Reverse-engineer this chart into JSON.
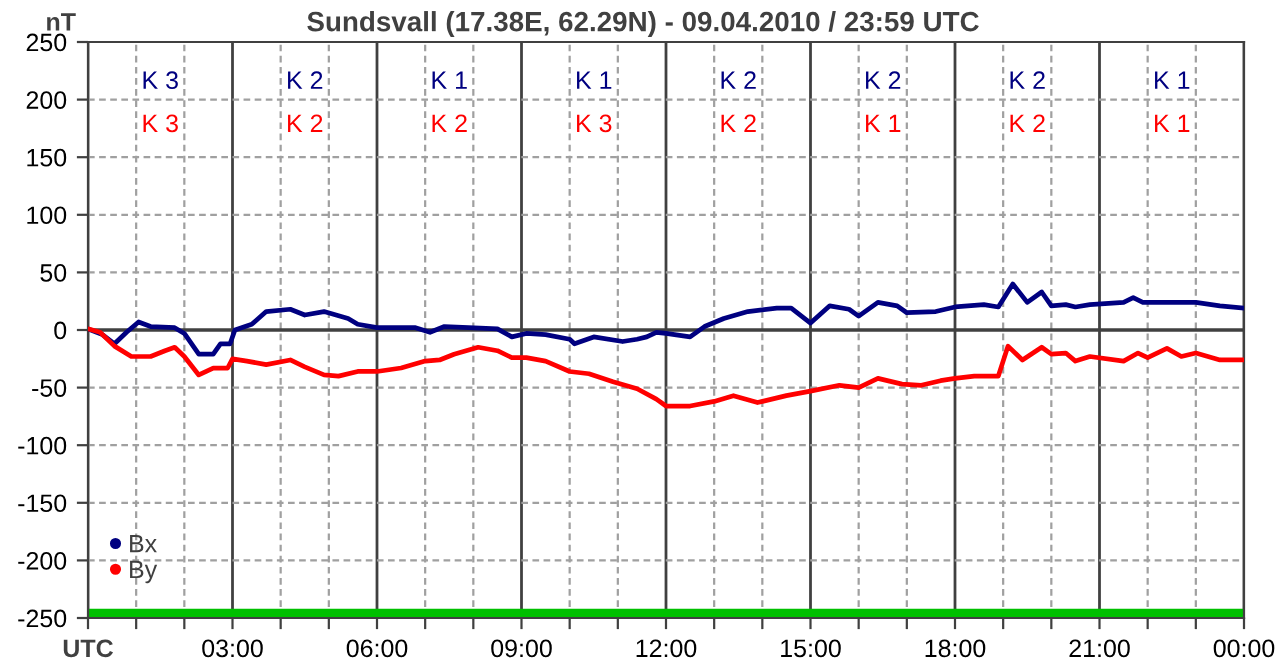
{
  "chart_data": {
    "type": "line",
    "title": "Sundsvall (17.38E, 62.29N) - 09.04.2010 / 23:59 UTC",
    "ylabel": "nT",
    "xlim": [
      0,
      24
    ],
    "ylim": [
      -250,
      250
    ],
    "xticks": [
      {
        "value": 0,
        "label": "UTC"
      },
      {
        "value": 1,
        "label": null
      },
      {
        "value": 2,
        "label": null
      },
      {
        "value": 3,
        "label": "03:00"
      },
      {
        "value": 4,
        "label": null
      },
      {
        "value": 5,
        "label": null
      },
      {
        "value": 6,
        "label": "06:00"
      },
      {
        "value": 7,
        "label": null
      },
      {
        "value": 8,
        "label": null
      },
      {
        "value": 9,
        "label": "09:00"
      },
      {
        "value": 10,
        "label": null
      },
      {
        "value": 11,
        "label": null
      },
      {
        "value": 12,
        "label": "12:00"
      },
      {
        "value": 13,
        "label": null
      },
      {
        "value": 14,
        "label": null
      },
      {
        "value": 15,
        "label": "15:00"
      },
      {
        "value": 16,
        "label": null
      },
      {
        "value": 17,
        "label": null
      },
      {
        "value": 18,
        "label": "18:00"
      },
      {
        "value": 19,
        "label": null
      },
      {
        "value": 20,
        "label": null
      },
      {
        "value": 21,
        "label": "21:00"
      },
      {
        "value": 22,
        "label": null
      },
      {
        "value": 23,
        "label": null
      },
      {
        "value": 24,
        "label": "00:00"
      }
    ],
    "yticks": [
      -250,
      -200,
      -150,
      -100,
      -50,
      0,
      50,
      100,
      150,
      200,
      250
    ],
    "grid": true,
    "legend": "bottom left",
    "marker": "none",
    "line_style": "solid",
    "ref_lines": [
      {
        "axis": "y",
        "value": 0,
        "color": "#404040"
      }
    ],
    "bands": [
      {
        "axis": "y",
        "from": -250,
        "to": -242,
        "color": "#00c000"
      }
    ],
    "series": [
      {
        "name": "Bx",
        "color": "#000080",
        "x": [
          0,
          0.3,
          0.55,
          0.8,
          1.05,
          1.3,
          1.8,
          2.0,
          2.3,
          2.6,
          2.75,
          2.95,
          3.05,
          3.4,
          3.7,
          4.2,
          4.5,
          4.9,
          5.4,
          5.6,
          6.0,
          6.8,
          7.1,
          7.4,
          7.9,
          8.5,
          8.8,
          9.1,
          9.5,
          10.0,
          10.1,
          10.5,
          11.1,
          11.4,
          11.6,
          11.8,
          12.0,
          12.5,
          12.8,
          13.2,
          13.7,
          14.3,
          14.6,
          15.0,
          15.4,
          15.8,
          16.0,
          16.4,
          16.8,
          17.0,
          17.6,
          18.0,
          18.6,
          18.9,
          19.2,
          19.5,
          19.8,
          20.0,
          20.3,
          20.5,
          20.8,
          21.5,
          21.7,
          21.9,
          22.5,
          23.0,
          23.5,
          24.0
        ],
        "values": [
          1,
          -4,
          -12,
          -2,
          7,
          3,
          2,
          -3,
          -21,
          -21,
          -12,
          -12,
          0,
          5,
          16,
          18,
          13,
          16,
          10,
          5,
          2,
          2,
          -2,
          3,
          2,
          1,
          -6,
          -3,
          -4,
          -8,
          -12,
          -6,
          -10,
          -8,
          -6,
          -2,
          -3,
          -6,
          3,
          10,
          16,
          19,
          19,
          6,
          21,
          18,
          12,
          24,
          21,
          15,
          16,
          20,
          22,
          20,
          40,
          24,
          33,
          21,
          22,
          20,
          22,
          24,
          28,
          24,
          24,
          24,
          21,
          19
        ]
      },
      {
        "name": "By",
        "color": "#ff0000",
        "x": [
          0,
          0.25,
          0.55,
          0.9,
          1.3,
          1.6,
          1.8,
          2.0,
          2.3,
          2.6,
          2.9,
          3.0,
          3.3,
          3.7,
          4.2,
          4.5,
          4.9,
          5.2,
          5.6,
          6.0,
          6.5,
          7.0,
          7.3,
          7.6,
          8.1,
          8.5,
          8.8,
          9.1,
          9.5,
          10.0,
          10.4,
          10.9,
          11.4,
          11.8,
          12.0,
          12.5,
          13.0,
          13.4,
          13.9,
          14.5,
          15.0,
          15.6,
          16.0,
          16.4,
          16.9,
          17.3,
          17.7,
          18.0,
          18.4,
          18.9,
          19.1,
          19.4,
          19.8,
          20.0,
          20.3,
          20.5,
          20.8,
          21.5,
          21.8,
          22.0,
          22.4,
          22.7,
          23.0,
          23.5,
          24.0
        ],
        "values": [
          1,
          -2,
          -14,
          -23,
          -23,
          -18,
          -15,
          -23,
          -39,
          -33,
          -33,
          -25,
          -27,
          -30,
          -26,
          -32,
          -39,
          -40,
          -36,
          -36,
          -33,
          -27,
          -26,
          -21,
          -15,
          -18,
          -24,
          -24,
          -27,
          -36,
          -38,
          -45,
          -51,
          -60,
          -66,
          -66,
          -62,
          -57,
          -63,
          -57,
          -53,
          -48,
          -50,
          -42,
          -47,
          -48,
          -44,
          -42,
          -40,
          -40,
          -14,
          -26,
          -15,
          -21,
          -20,
          -27,
          -23,
          -27,
          -20,
          -24,
          -16,
          -23,
          -20,
          -26,
          -26
        ]
      }
    ],
    "annotations": [
      "K 3",
      "K 2",
      "K 1",
      "K 1",
      "K 2",
      "K 2",
      "K 2",
      "K 1",
      "K 3",
      "K 2",
      "K 2",
      "K 3",
      "K 2",
      "K 1",
      "K 2",
      "K 1"
    ]
  }
}
